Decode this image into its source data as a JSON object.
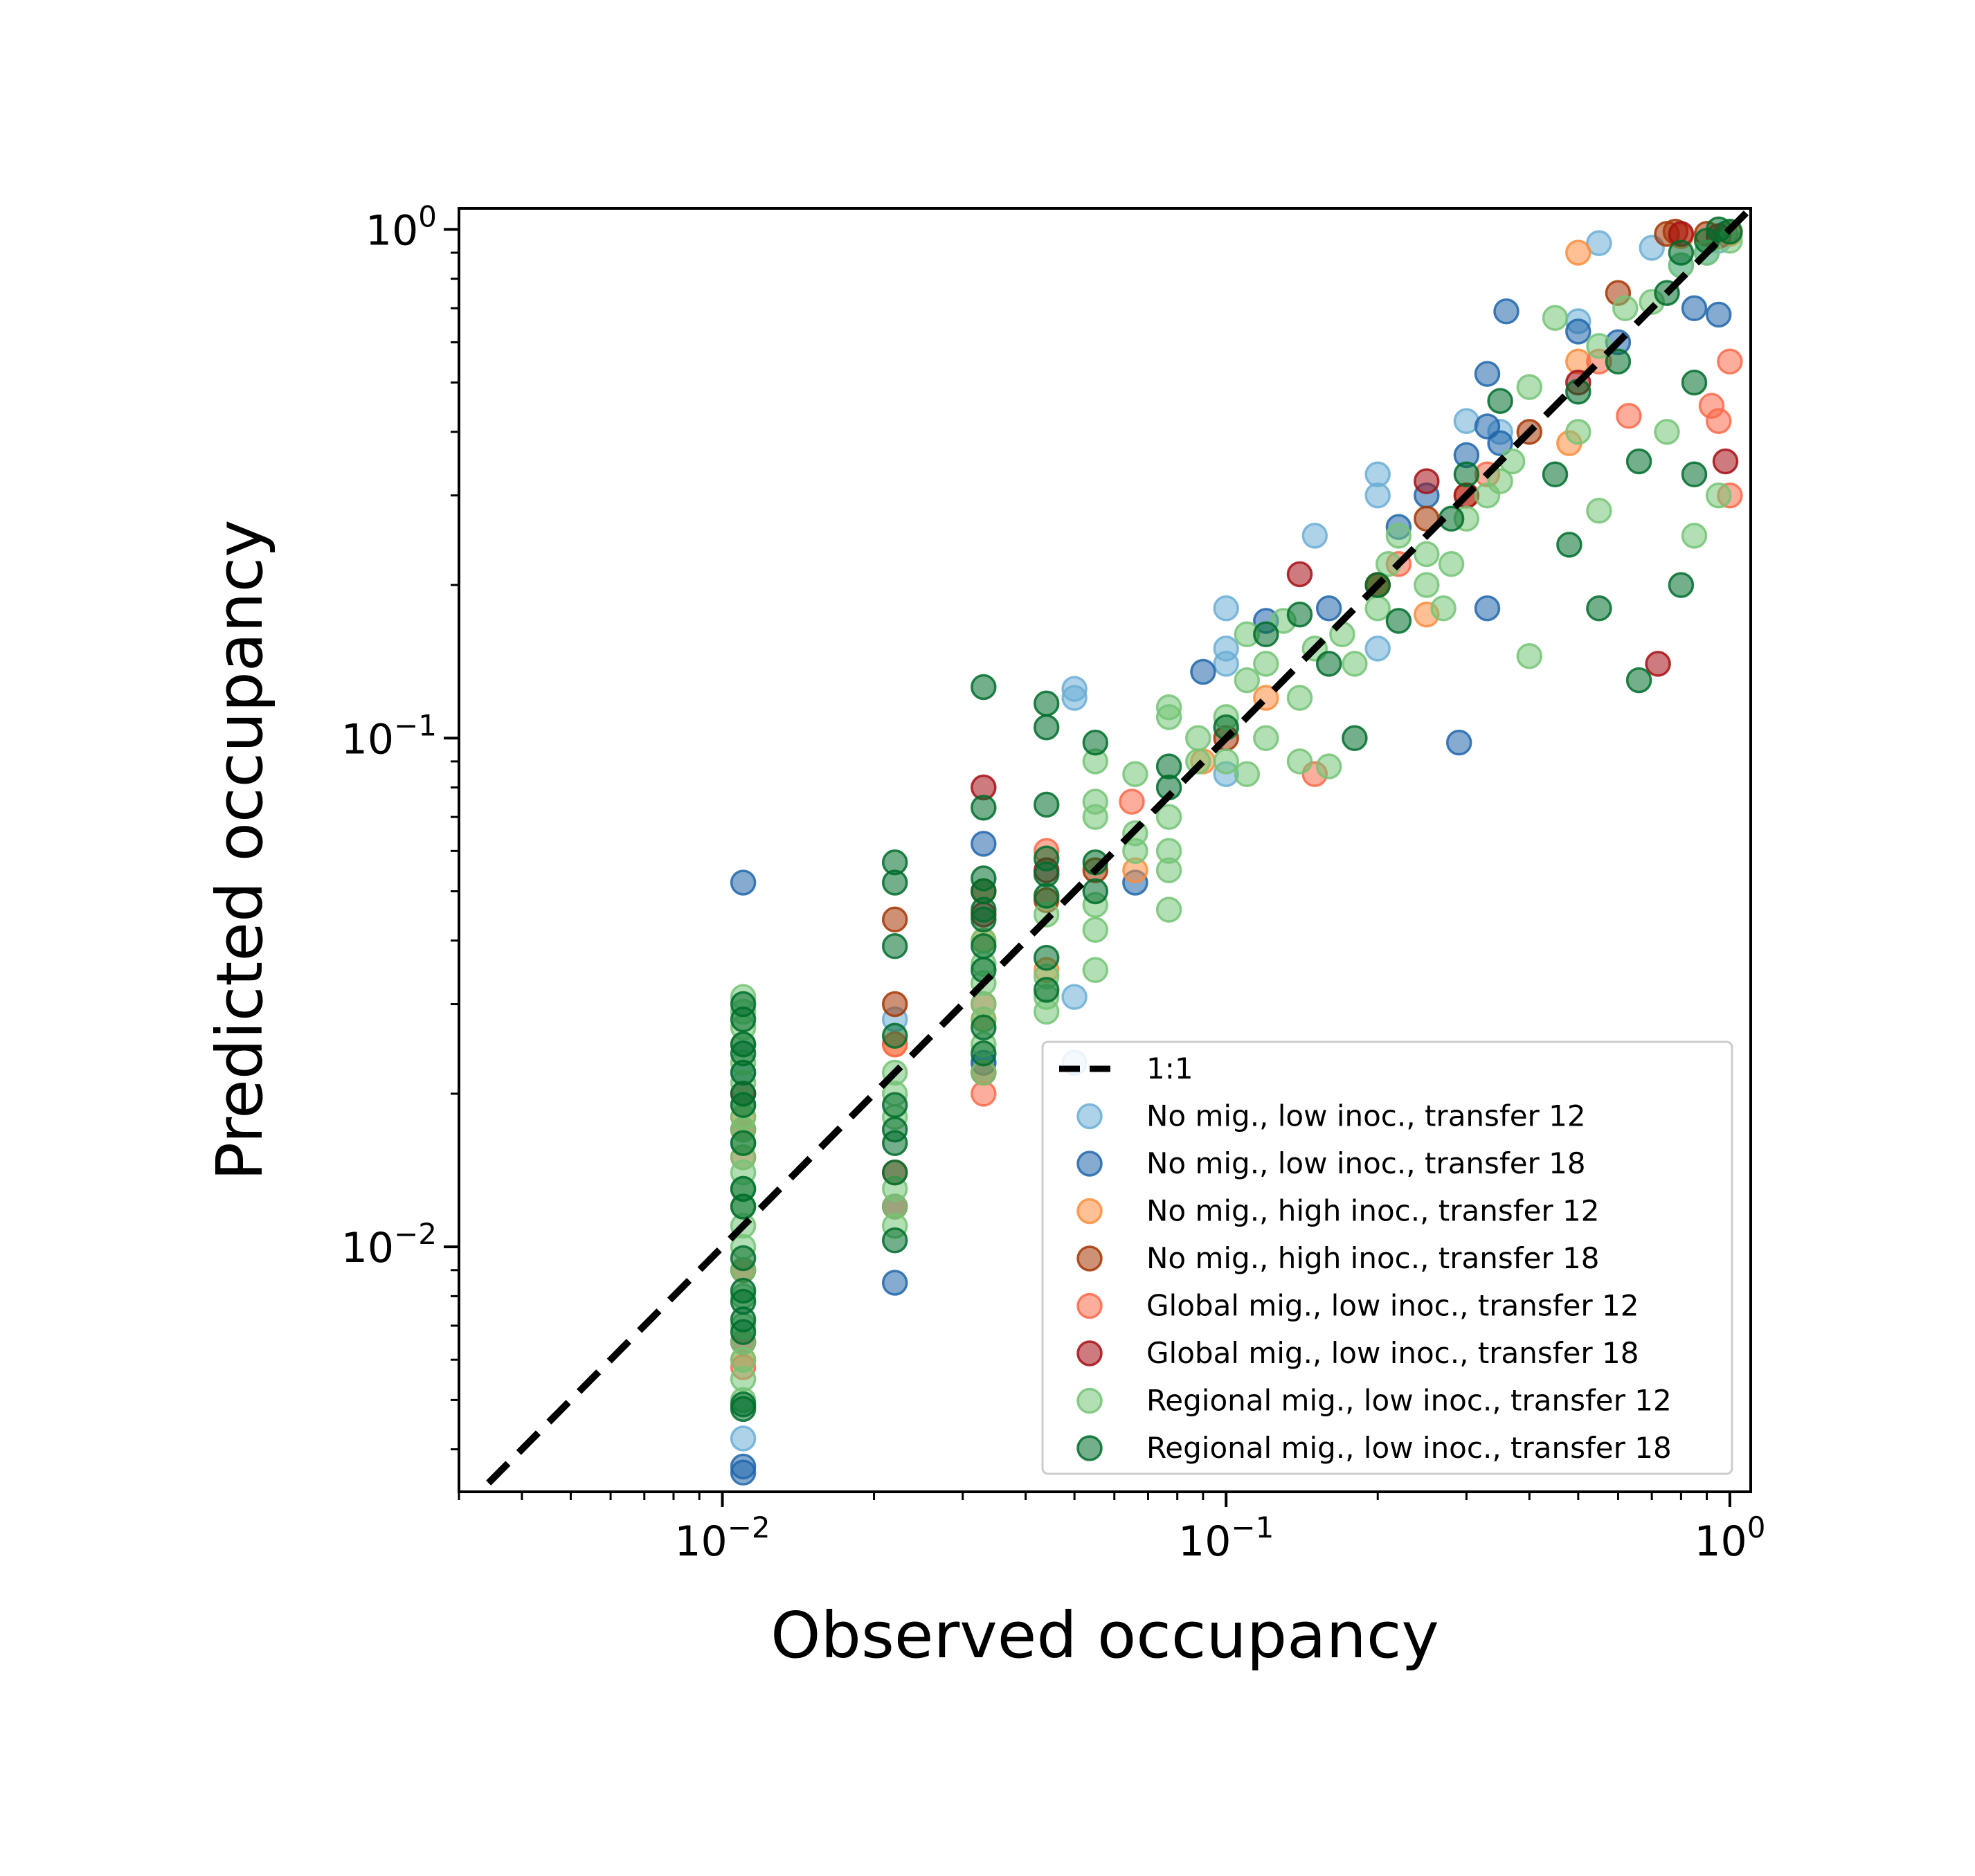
{
  "chart_data": {
    "type": "scatter",
    "xlabel": "Observed occupancy",
    "ylabel": "Predicted occupancy",
    "xscale": "log",
    "yscale": "log",
    "xlim": [
      0.003,
      1.1
    ],
    "ylim": [
      0.0033,
      1.1
    ],
    "xticks": [
      {
        "base": "10",
        "exp": "−2",
        "value": 0.01
      },
      {
        "base": "10",
        "exp": "−1",
        "value": 0.1
      },
      {
        "base": "10",
        "exp": "0",
        "value": 1
      }
    ],
    "yticks": [
      {
        "base": "10",
        "exp": "−2",
        "value": 0.01
      },
      {
        "base": "10",
        "exp": "−1",
        "value": 0.1
      },
      {
        "base": "10",
        "exp": "0",
        "value": 1
      }
    ],
    "grid": false,
    "legend_position": "lower-right",
    "reference_line": {
      "label": "1:1",
      "color": "#000000",
      "style": "dashed"
    },
    "series": [
      {
        "name": "No mig., low inoc., transfer 12",
        "color": "#6baed6",
        "points": [
          [
            0.011,
            0.0042
          ],
          [
            0.011,
            0.022
          ],
          [
            0.022,
            0.028
          ],
          [
            0.033,
            0.023
          ],
          [
            0.05,
            0.031
          ],
          [
            0.05,
            0.023
          ],
          [
            0.05,
            0.12
          ],
          [
            0.05,
            0.125
          ],
          [
            0.1,
            0.18
          ],
          [
            0.1,
            0.15
          ],
          [
            0.1,
            0.14
          ],
          [
            0.1,
            0.085
          ],
          [
            0.15,
            0.25
          ],
          [
            0.2,
            0.3
          ],
          [
            0.2,
            0.33
          ],
          [
            0.2,
            0.15
          ],
          [
            0.3,
            0.42
          ],
          [
            0.35,
            0.4
          ],
          [
            0.5,
            0.66
          ],
          [
            0.55,
            0.94
          ],
          [
            0.7,
            0.92
          ],
          [
            0.8,
            0.85
          ],
          [
            0.9,
            0.9
          ],
          [
            0.95,
            0.95
          ]
        ]
      },
      {
        "name": "No mig., low inoc., transfer 18",
        "color": "#2166ac",
        "points": [
          [
            0.011,
            0.052
          ],
          [
            0.011,
            0.0036
          ],
          [
            0.011,
            0.0037
          ],
          [
            0.022,
            0.0085
          ],
          [
            0.033,
            0.062
          ],
          [
            0.033,
            0.023
          ],
          [
            0.066,
            0.052
          ],
          [
            0.09,
            0.135
          ],
          [
            0.12,
            0.17
          ],
          [
            0.16,
            0.18
          ],
          [
            0.22,
            0.26
          ],
          [
            0.25,
            0.3
          ],
          [
            0.29,
            0.098
          ],
          [
            0.3,
            0.36
          ],
          [
            0.33,
            0.18
          ],
          [
            0.33,
            0.41
          ],
          [
            0.33,
            0.52
          ],
          [
            0.36,
            0.69
          ],
          [
            0.35,
            0.38
          ],
          [
            0.5,
            0.63
          ],
          [
            0.6,
            0.6
          ],
          [
            0.85,
            0.7
          ],
          [
            0.95,
            0.68
          ],
          [
            0.98,
            0.98
          ]
        ]
      },
      {
        "name": "No mig., high inoc., transfer 12",
        "color": "#fd8d3c",
        "points": [
          [
            0.011,
            0.006
          ],
          [
            0.011,
            0.018
          ],
          [
            0.022,
            0.025
          ],
          [
            0.033,
            0.028
          ],
          [
            0.033,
            0.04
          ],
          [
            0.044,
            0.035
          ],
          [
            0.066,
            0.055
          ],
          [
            0.09,
            0.09
          ],
          [
            0.12,
            0.12
          ],
          [
            0.2,
            0.2
          ],
          [
            0.25,
            0.175
          ],
          [
            0.3,
            0.3
          ],
          [
            0.48,
            0.38
          ],
          [
            0.5,
            0.55
          ],
          [
            0.5,
            0.9
          ],
          [
            0.8,
            0.97
          ],
          [
            1.0,
            0.98
          ]
        ]
      },
      {
        "name": "No mig., high inoc., transfer 18",
        "color": "#a63603",
        "points": [
          [
            0.011,
            0.009
          ],
          [
            0.011,
            0.017
          ],
          [
            0.022,
            0.03
          ],
          [
            0.022,
            0.044
          ],
          [
            0.033,
            0.05
          ],
          [
            0.033,
            0.022
          ],
          [
            0.044,
            0.048
          ],
          [
            0.055,
            0.055
          ],
          [
            0.1,
            0.1
          ],
          [
            0.2,
            0.2
          ],
          [
            0.25,
            0.27
          ],
          [
            0.4,
            0.4
          ],
          [
            0.6,
            0.75
          ],
          [
            0.75,
            0.98
          ],
          [
            0.78,
            0.99
          ],
          [
            0.9,
            0.98
          ]
        ]
      },
      {
        "name": "Global mig., low inoc., transfer 12",
        "color": "#fb6a4a",
        "points": [
          [
            0.011,
            0.0058
          ],
          [
            0.011,
            0.015
          ],
          [
            0.022,
            0.014
          ],
          [
            0.022,
            0.025
          ],
          [
            0.033,
            0.03
          ],
          [
            0.033,
            0.02
          ],
          [
            0.044,
            0.06
          ],
          [
            0.065,
            0.075
          ],
          [
            0.15,
            0.085
          ],
          [
            0.22,
            0.22
          ],
          [
            0.33,
            0.33
          ],
          [
            0.55,
            0.55
          ],
          [
            0.63,
            0.43
          ],
          [
            0.92,
            0.45
          ],
          [
            0.95,
            0.42
          ],
          [
            1.0,
            0.55
          ],
          [
            1.0,
            0.3
          ]
        ]
      },
      {
        "name": "Global mig., low inoc., transfer 18",
        "color": "#a50f15",
        "points": [
          [
            0.011,
            0.0065
          ],
          [
            0.011,
            0.02
          ],
          [
            0.022,
            0.012
          ],
          [
            0.033,
            0.08
          ],
          [
            0.033,
            0.045
          ],
          [
            0.044,
            0.055
          ],
          [
            0.14,
            0.21
          ],
          [
            0.25,
            0.32
          ],
          [
            0.3,
            0.3
          ],
          [
            0.5,
            0.5
          ],
          [
            0.8,
            0.98
          ],
          [
            0.95,
            0.97
          ],
          [
            0.98,
            0.35
          ],
          [
            0.72,
            0.14
          ]
        ]
      },
      {
        "name": "Regional mig., low inoc., transfer 12",
        "color": "#74c476",
        "points": [
          [
            0.011,
            0.005
          ],
          [
            0.011,
            0.0055
          ],
          [
            0.011,
            0.006
          ],
          [
            0.011,
            0.0065
          ],
          [
            0.011,
            0.007
          ],
          [
            0.011,
            0.008
          ],
          [
            0.011,
            0.009
          ],
          [
            0.011,
            0.01
          ],
          [
            0.011,
            0.011
          ],
          [
            0.011,
            0.012
          ],
          [
            0.011,
            0.013
          ],
          [
            0.011,
            0.014
          ],
          [
            0.011,
            0.015
          ],
          [
            0.011,
            0.016
          ],
          [
            0.011,
            0.017
          ],
          [
            0.011,
            0.018
          ],
          [
            0.011,
            0.019
          ],
          [
            0.011,
            0.021
          ],
          [
            0.011,
            0.023
          ],
          [
            0.011,
            0.025
          ],
          [
            0.011,
            0.027
          ],
          [
            0.011,
            0.029
          ],
          [
            0.011,
            0.031
          ],
          [
            0.022,
            0.011
          ],
          [
            0.022,
            0.012
          ],
          [
            0.022,
            0.013
          ],
          [
            0.022,
            0.018
          ],
          [
            0.022,
            0.02
          ],
          [
            0.022,
            0.022
          ],
          [
            0.033,
            0.022
          ],
          [
            0.033,
            0.025
          ],
          [
            0.033,
            0.028
          ],
          [
            0.033,
            0.03
          ],
          [
            0.033,
            0.033
          ],
          [
            0.033,
            0.036
          ],
          [
            0.033,
            0.04
          ],
          [
            0.044,
            0.029
          ],
          [
            0.044,
            0.031
          ],
          [
            0.044,
            0.034
          ],
          [
            0.044,
            0.045
          ],
          [
            0.055,
            0.035
          ],
          [
            0.055,
            0.042
          ],
          [
            0.055,
            0.047
          ],
          [
            0.055,
            0.07
          ],
          [
            0.055,
            0.075
          ],
          [
            0.055,
            0.09
          ],
          [
            0.066,
            0.06
          ],
          [
            0.066,
            0.065
          ],
          [
            0.066,
            0.085
          ],
          [
            0.077,
            0.046
          ],
          [
            0.077,
            0.055
          ],
          [
            0.077,
            0.06
          ],
          [
            0.077,
            0.07
          ],
          [
            0.077,
            0.11
          ],
          [
            0.077,
            0.115
          ],
          [
            0.088,
            0.09
          ],
          [
            0.088,
            0.1
          ],
          [
            0.1,
            0.09
          ],
          [
            0.1,
            0.11
          ],
          [
            0.11,
            0.085
          ],
          [
            0.11,
            0.13
          ],
          [
            0.11,
            0.16
          ],
          [
            0.12,
            0.1
          ],
          [
            0.12,
            0.14
          ],
          [
            0.13,
            0.17
          ],
          [
            0.14,
            0.09
          ],
          [
            0.14,
            0.12
          ],
          [
            0.15,
            0.15
          ],
          [
            0.16,
            0.088
          ],
          [
            0.17,
            0.16
          ],
          [
            0.18,
            0.14
          ],
          [
            0.2,
            0.18
          ],
          [
            0.21,
            0.22
          ],
          [
            0.22,
            0.25
          ],
          [
            0.25,
            0.2
          ],
          [
            0.25,
            0.23
          ],
          [
            0.27,
            0.18
          ],
          [
            0.28,
            0.22
          ],
          [
            0.3,
            0.27
          ],
          [
            0.33,
            0.3
          ],
          [
            0.35,
            0.32
          ],
          [
            0.37,
            0.35
          ],
          [
            0.4,
            0.145
          ],
          [
            0.4,
            0.49
          ],
          [
            0.45,
            0.67
          ],
          [
            0.5,
            0.4
          ],
          [
            0.55,
            0.28
          ],
          [
            0.55,
            0.59
          ],
          [
            0.62,
            0.7
          ],
          [
            0.7,
            0.72
          ],
          [
            0.75,
            0.4
          ],
          [
            0.8,
            0.85
          ],
          [
            0.85,
            0.25
          ],
          [
            0.9,
            0.9
          ],
          [
            0.95,
            0.3
          ],
          [
            1.0,
            0.95
          ]
        ]
      },
      {
        "name": "Regional mig., low inoc., transfer 18",
        "color": "#006d2c",
        "points": [
          [
            0.011,
            0.0048
          ],
          [
            0.011,
            0.0049
          ],
          [
            0.011,
            0.0068
          ],
          [
            0.011,
            0.0072
          ],
          [
            0.011,
            0.0078
          ],
          [
            0.011,
            0.0082
          ],
          [
            0.011,
            0.0095
          ],
          [
            0.011,
            0.012
          ],
          [
            0.011,
            0.013
          ],
          [
            0.011,
            0.016
          ],
          [
            0.011,
            0.019
          ],
          [
            0.011,
            0.02
          ],
          [
            0.011,
            0.022
          ],
          [
            0.011,
            0.024
          ],
          [
            0.011,
            0.025
          ],
          [
            0.011,
            0.028
          ],
          [
            0.011,
            0.03
          ],
          [
            0.022,
            0.0103
          ],
          [
            0.022,
            0.014
          ],
          [
            0.022,
            0.016
          ],
          [
            0.022,
            0.017
          ],
          [
            0.022,
            0.019
          ],
          [
            0.022,
            0.026
          ],
          [
            0.022,
            0.039
          ],
          [
            0.022,
            0.052
          ],
          [
            0.022,
            0.057
          ],
          [
            0.033,
            0.024
          ],
          [
            0.033,
            0.027
          ],
          [
            0.033,
            0.035
          ],
          [
            0.033,
            0.039
          ],
          [
            0.033,
            0.044
          ],
          [
            0.033,
            0.046
          ],
          [
            0.033,
            0.05
          ],
          [
            0.033,
            0.053
          ],
          [
            0.033,
            0.073
          ],
          [
            0.033,
            0.126
          ],
          [
            0.044,
            0.032
          ],
          [
            0.044,
            0.037
          ],
          [
            0.044,
            0.049
          ],
          [
            0.044,
            0.054
          ],
          [
            0.044,
            0.058
          ],
          [
            0.044,
            0.074
          ],
          [
            0.044,
            0.105
          ],
          [
            0.044,
            0.117
          ],
          [
            0.055,
            0.05
          ],
          [
            0.055,
            0.057
          ],
          [
            0.055,
            0.098
          ],
          [
            0.077,
            0.08
          ],
          [
            0.077,
            0.088
          ],
          [
            0.1,
            0.105
          ],
          [
            0.12,
            0.16
          ],
          [
            0.14,
            0.175
          ],
          [
            0.16,
            0.14
          ],
          [
            0.18,
            0.1
          ],
          [
            0.2,
            0.2
          ],
          [
            0.22,
            0.17
          ],
          [
            0.28,
            0.27
          ],
          [
            0.3,
            0.33
          ],
          [
            0.35,
            0.46
          ],
          [
            0.45,
            0.33
          ],
          [
            0.48,
            0.24
          ],
          [
            0.5,
            0.48
          ],
          [
            0.55,
            0.18
          ],
          [
            0.6,
            0.55
          ],
          [
            0.66,
            0.35
          ],
          [
            0.66,
            0.13
          ],
          [
            0.75,
            0.75
          ],
          [
            0.8,
            0.9
          ],
          [
            0.8,
            0.2
          ],
          [
            0.85,
            0.33
          ],
          [
            0.85,
            0.5
          ],
          [
            0.9,
            0.95
          ],
          [
            0.95,
            1.0
          ],
          [
            1.0,
            0.99
          ]
        ]
      }
    ]
  }
}
